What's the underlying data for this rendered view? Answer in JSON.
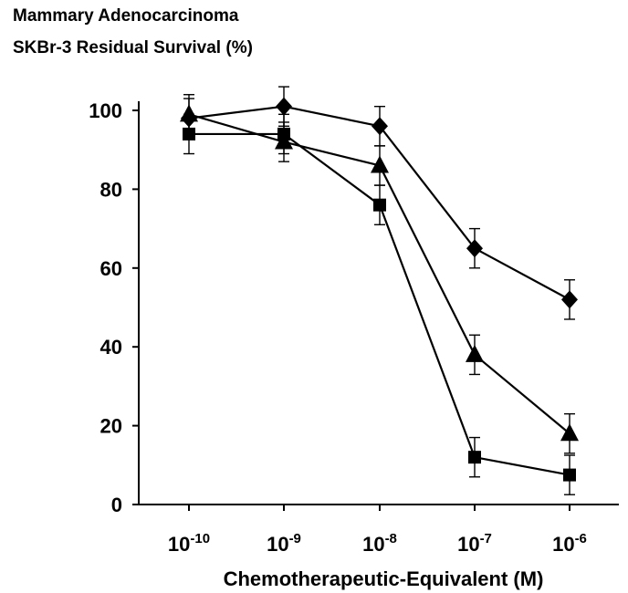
{
  "chart_data": {
    "type": "line",
    "title": "Mammary Adenocarcinoma",
    "subtitle": "SKBr-3 Residual Survival (%)",
    "xlabel": "Chemotherapeutic-Equivalent (M)",
    "ylabel": "",
    "x_scale": "log",
    "x": [
      1e-10,
      1e-09,
      1e-08,
      1e-07,
      1e-06
    ],
    "x_tick_labels": [
      {
        "base": "10",
        "exp": "-10"
      },
      {
        "base": "10",
        "exp": "-9"
      },
      {
        "base": "10",
        "exp": "-8"
      },
      {
        "base": "10",
        "exp": "-7"
      },
      {
        "base": "10",
        "exp": "-6"
      }
    ],
    "ylim": [
      0,
      100
    ],
    "y_ticks": [
      0,
      20,
      40,
      60,
      80,
      100
    ],
    "grid": false,
    "legend": "none",
    "series": [
      {
        "marker": "diamond",
        "values": [
          98,
          101,
          96,
          65,
          52
        ],
        "errors": [
          5,
          5,
          5,
          5,
          5
        ]
      },
      {
        "marker": "triangle",
        "values": [
          99,
          92,
          86,
          38,
          18
        ],
        "errors": [
          5,
          5,
          5,
          5,
          5
        ]
      },
      {
        "marker": "square",
        "values": [
          94,
          94,
          76,
          12,
          7.5
        ],
        "errors": [
          5,
          5,
          5,
          5,
          5
        ]
      }
    ],
    "colors": {
      "line": "#000000",
      "marker": "#000000"
    }
  }
}
